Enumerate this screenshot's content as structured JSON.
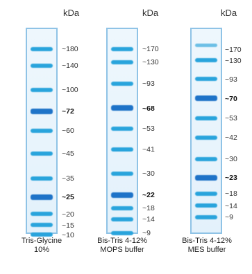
{
  "unit_label": "kDa",
  "ladders": [
    {
      "caption_line1": "Tris-Glycine",
      "caption_line2": "10%",
      "markers": [
        {
          "label": "~180",
          "bold": false
        },
        {
          "label": "~140",
          "bold": false
        },
        {
          "label": "~100",
          "bold": false
        },
        {
          "label": "~72",
          "bold": true
        },
        {
          "label": "~60",
          "bold": false
        },
        {
          "label": "~45",
          "bold": false
        },
        {
          "label": "~35",
          "bold": false
        },
        {
          "label": "~25",
          "bold": true
        },
        {
          "label": "~20",
          "bold": false
        },
        {
          "label": "~15",
          "bold": false
        },
        {
          "label": "~10",
          "bold": false
        }
      ]
    },
    {
      "caption_line1": "Bis-Tris 4-12%",
      "caption_line2": "MOPS buffer",
      "markers": [
        {
          "label": "~170",
          "bold": false
        },
        {
          "label": "~130",
          "bold": false
        },
        {
          "label": "~93",
          "bold": false
        },
        {
          "label": "~68",
          "bold": true
        },
        {
          "label": "~53",
          "bold": false
        },
        {
          "label": "~41",
          "bold": false
        },
        {
          "label": "~30",
          "bold": false
        },
        {
          "label": "~22",
          "bold": true
        },
        {
          "label": "~18",
          "bold": false
        },
        {
          "label": "~14",
          "bold": false
        },
        {
          "label": "~9",
          "bold": false
        }
      ]
    },
    {
      "caption_line1": "Bis-Tris 4-12%",
      "caption_line2": "MES buffer",
      "markers": [
        {
          "label": "~170",
          "bold": false
        },
        {
          "label": "~130",
          "bold": false
        },
        {
          "label": "~93",
          "bold": false
        },
        {
          "label": "~70",
          "bold": true
        },
        {
          "label": "~53",
          "bold": false
        },
        {
          "label": "~42",
          "bold": false
        },
        {
          "label": "~30",
          "bold": false
        },
        {
          "label": "~23",
          "bold": true
        },
        {
          "label": "~18",
          "bold": false
        },
        {
          "label": "~14",
          "bold": false
        },
        {
          "label": "~9",
          "bold": false
        }
      ]
    }
  ]
}
